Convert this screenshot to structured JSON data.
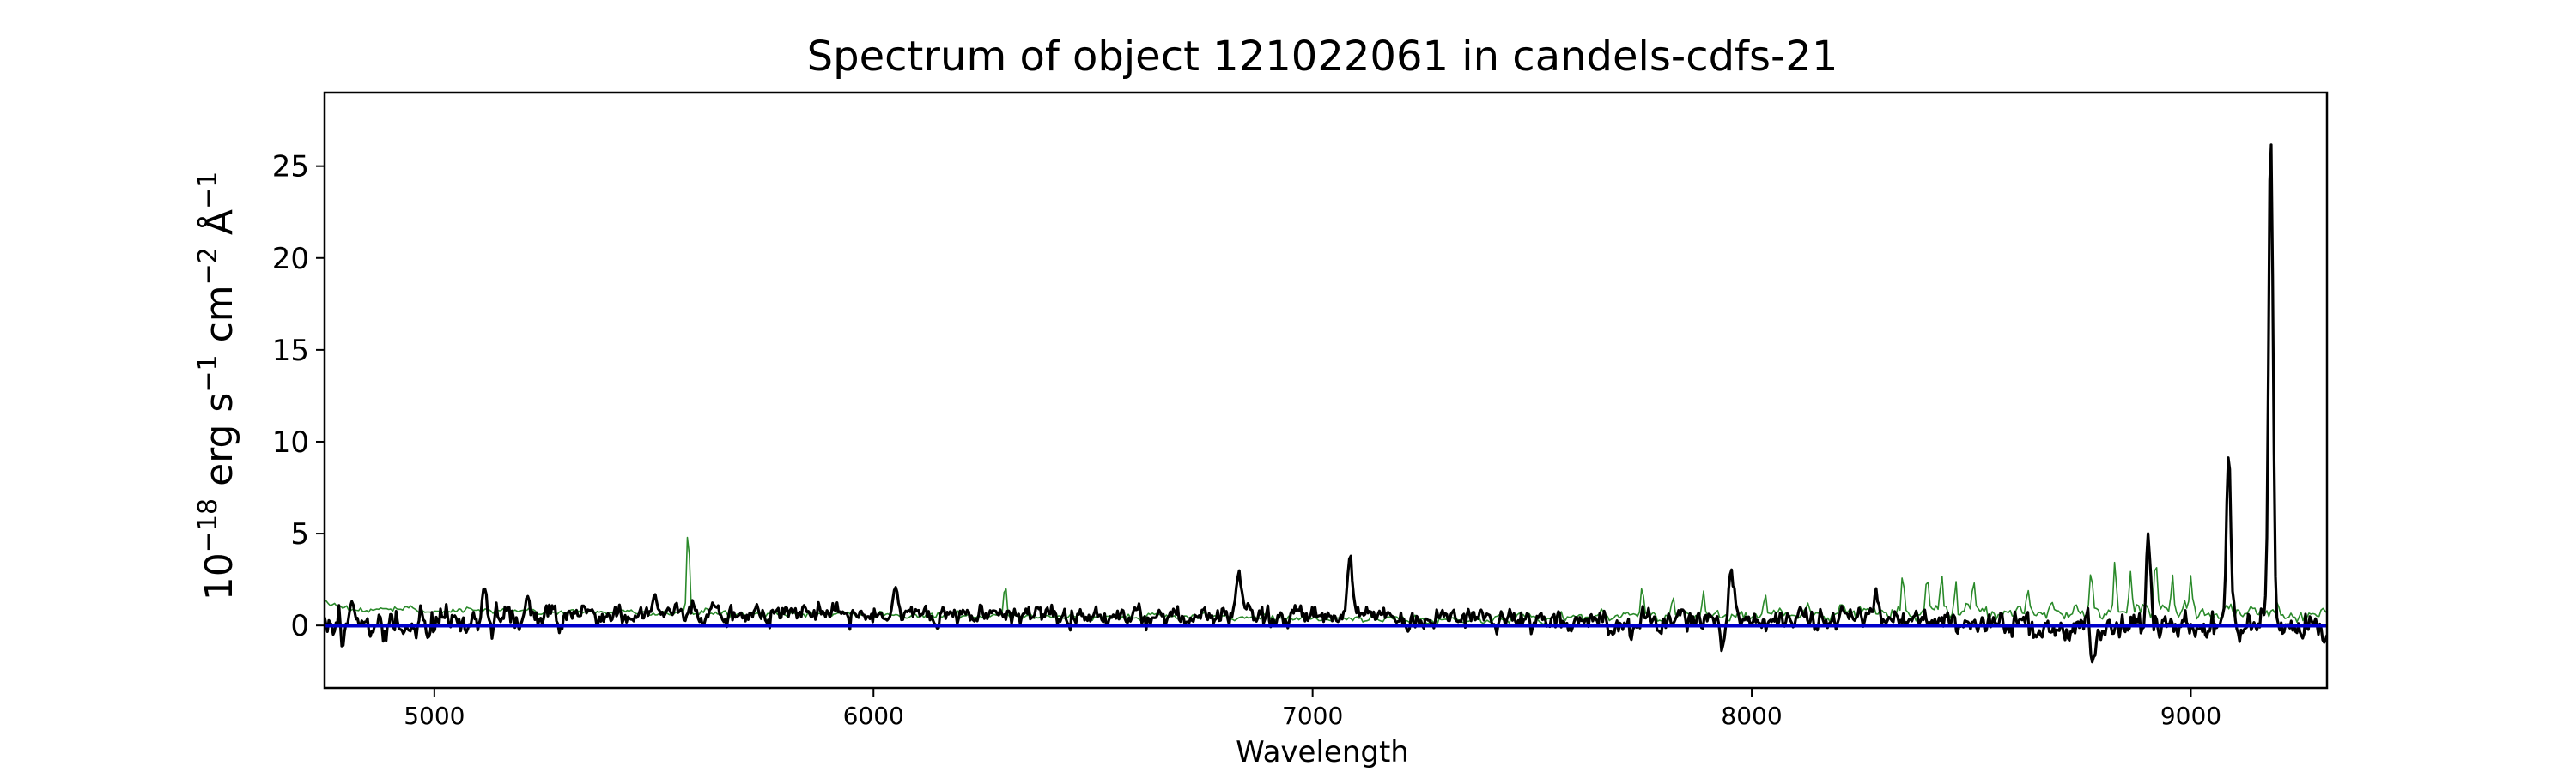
{
  "chart_data": {
    "type": "line",
    "title": "Spectrum of object 121022061 in candels-cdfs-21",
    "xlabel": "Wavelength",
    "ylabel": {
      "base": "10",
      "exp1": "−18",
      "erg": " erg s",
      "exp2": "−1",
      "cm": " cm",
      "exp3": "−2",
      "ang": " Å",
      "exp4": "−1"
    },
    "xlim": [
      4750,
      9310
    ],
    "ylim": [
      -3.4,
      29.0
    ],
    "x_ticks": [
      5000,
      6000,
      7000,
      8000,
      9000
    ],
    "x_tick_labels": [
      "5000",
      "6000",
      "7000",
      "8000",
      "9000"
    ],
    "y_ticks": [
      0,
      5,
      10,
      15,
      20,
      25
    ],
    "y_tick_labels": [
      "0",
      "5",
      "10",
      "15",
      "20",
      "25"
    ],
    "grid": false,
    "colors": {
      "flux": "#000000",
      "model": "#2a8a2a",
      "zero": "#0000cc"
    },
    "series": [
      {
        "key": "flux",
        "x_start": 4750,
        "x_end": 9310,
        "n": 1400,
        "baseline": [
          [
            4750,
            0.2
          ],
          [
            5000,
            0.2
          ],
          [
            5300,
            0.6
          ],
          [
            6000,
            0.7
          ],
          [
            6500,
            0.55
          ],
          [
            7000,
            0.5
          ],
          [
            7500,
            0.4
          ],
          [
            7600,
            0.1
          ],
          [
            8000,
            0.3
          ],
          [
            8300,
            0.4
          ],
          [
            8700,
            -0.1
          ],
          [
            9000,
            -0.15
          ],
          [
            9310,
            0.0
          ]
        ],
        "noise": [
          [
            4750,
            0.9
          ],
          [
            5300,
            0.6
          ],
          [
            6000,
            0.4
          ],
          [
            7600,
            0.5
          ],
          [
            8300,
            0.45
          ],
          [
            8700,
            0.6
          ],
          [
            9310,
            0.6
          ]
        ],
        "peaks": [
          [
            9182,
            27.5,
            5
          ],
          [
            9086,
            9.4,
            5
          ],
          [
            8903,
            4.9,
            5
          ],
          [
            7085,
            2.9,
            6
          ],
          [
            6833,
            2.3,
            6
          ],
          [
            7955,
            2.2,
            6
          ],
          [
            5115,
            2.1,
            5
          ],
          [
            5502,
            1.6,
            5
          ],
          [
            6050,
            1.4,
            6
          ],
          [
            8283,
            1.4,
            5
          ],
          [
            8765,
            1.2,
            5
          ]
        ],
        "dips": [
          [
            8775,
            -1.9,
            6
          ],
          [
            4990,
            -1.3,
            5
          ],
          [
            7935,
            -1.2,
            6
          ],
          [
            9305,
            -1.4,
            4
          ],
          [
            8655,
            -0.9,
            6
          ],
          [
            5285,
            -0.9,
            5
          ]
        ]
      },
      {
        "key": "model",
        "x_start": 4750,
        "x_end": 9310,
        "n": 1000,
        "baseline": [
          [
            4750,
            1.4
          ],
          [
            4800,
            0.9
          ],
          [
            5000,
            0.8
          ],
          [
            6000,
            0.6
          ],
          [
            7000,
            0.4
          ],
          [
            7300,
            0.3
          ],
          [
            7700,
            0.5
          ],
          [
            8300,
            0.7
          ],
          [
            8700,
            0.8
          ],
          [
            9310,
            0.6
          ]
        ],
        "noise": [
          [
            4750,
            0.15
          ],
          [
            7000,
            0.15
          ],
          [
            7700,
            0.25
          ],
          [
            8300,
            0.35
          ],
          [
            8700,
            0.45
          ],
          [
            9310,
            0.35
          ]
        ],
        "peaks": [
          [
            5578,
            4.8,
            3
          ],
          [
            8344,
            2.2,
            3
          ],
          [
            8400,
            2.0,
            3
          ],
          [
            8432,
            1.9,
            3
          ],
          [
            8465,
            2.0,
            3
          ],
          [
            8505,
            1.8,
            3
          ],
          [
            8827,
            2.9,
            3
          ],
          [
            8862,
            2.5,
            3
          ],
          [
            8920,
            2.7,
            3
          ],
          [
            8958,
            2.6,
            3
          ],
          [
            9000,
            1.7,
            3
          ],
          [
            8773,
            2.1,
            3
          ],
          [
            6300,
            1.8,
            3
          ],
          [
            7750,
            1.5,
            3
          ],
          [
            7820,
            1.4,
            3
          ],
          [
            7890,
            1.6,
            3
          ],
          [
            8030,
            1.3,
            3
          ],
          [
            8630,
            1.4,
            4
          ]
        ],
        "dips": []
      },
      {
        "key": "zero",
        "points": [
          [
            4750,
            0.0
          ],
          [
            9310,
            0.0
          ]
        ]
      }
    ]
  }
}
